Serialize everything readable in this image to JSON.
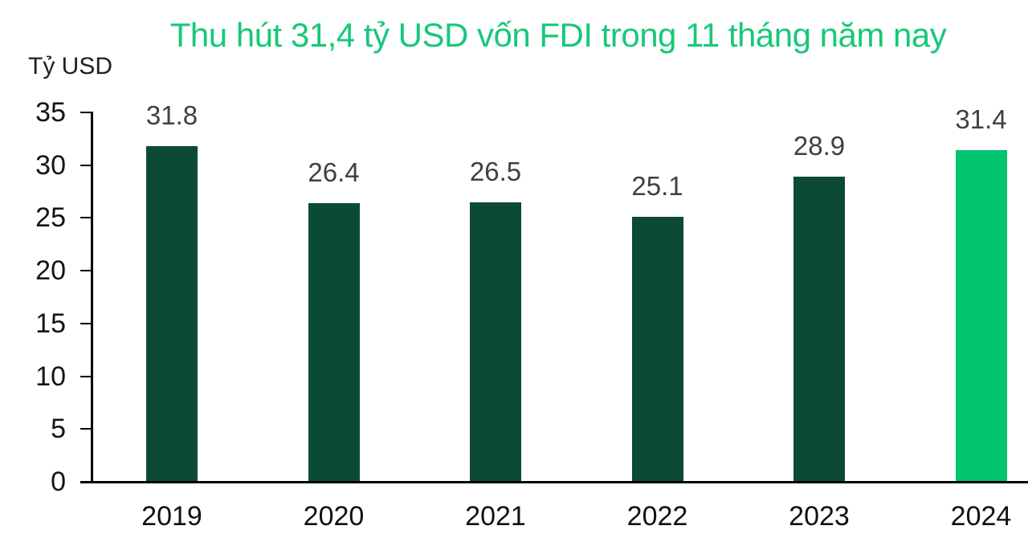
{
  "header": {
    "title": "Thu hút 31,4 tỷ USD vốn FDI trong 11 tháng năm nay",
    "title_color": "#17C878"
  },
  "colors": {
    "bar_default": "#0C4A33",
    "bar_highlight": "#00C36E",
    "axis": "#000000",
    "value_label": "#404040",
    "tick_label": "#141414"
  },
  "chart_data": {
    "type": "bar",
    "title": "Thu hút 31,4 tỷ USD vốn FDI trong 11 tháng năm nay",
    "categories": [
      "2019",
      "2020",
      "2021",
      "2022",
      "2023",
      "2024"
    ],
    "values": [
      31.8,
      26.4,
      26.5,
      25.1,
      28.9,
      31.4
    ],
    "value_labels": [
      "31.8",
      "26.4",
      "26.5",
      "25.1",
      "28.9",
      "31.4"
    ],
    "highlight_index": 5,
    "xlabel": "",
    "ylabel": "Tỷ USD",
    "ylim": [
      0,
      35
    ],
    "yticks": [
      0,
      5,
      10,
      15,
      20,
      25,
      30,
      35
    ],
    "grid": false,
    "legend_position": "none"
  }
}
